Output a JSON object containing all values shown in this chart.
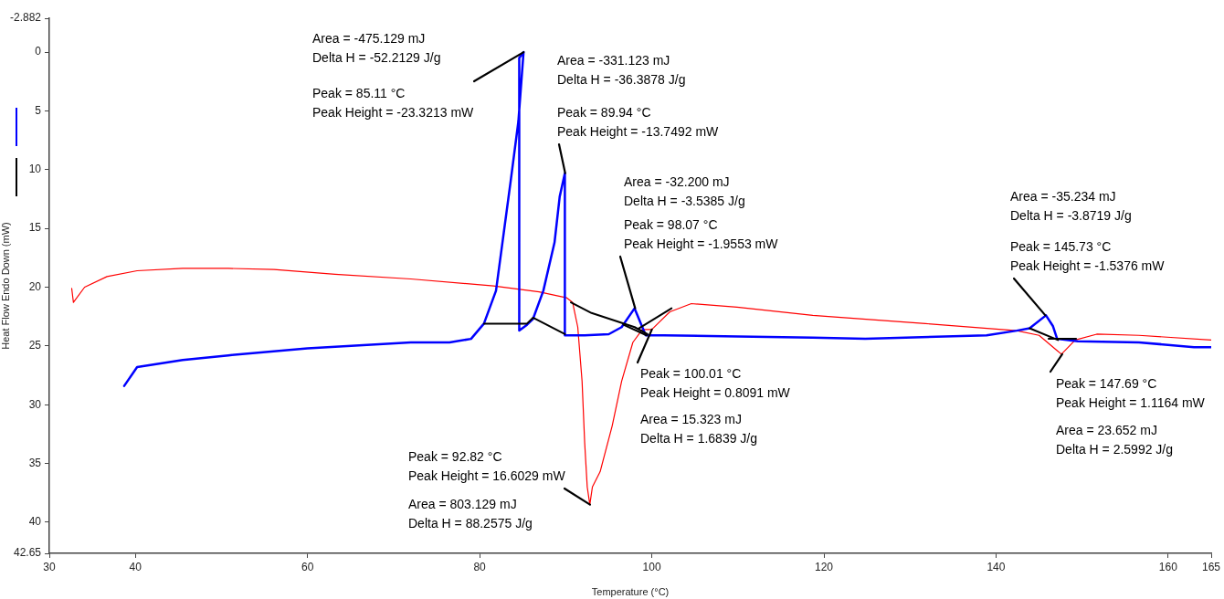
{
  "chart_data": {
    "type": "line",
    "xlabel": "Temperature (°C)",
    "ylabel": "Heat Flow Endo Down (mW)",
    "xlim": [
      30,
      165
    ],
    "xticks": [
      30,
      40,
      60,
      80,
      100,
      120,
      140,
      160,
      165
    ],
    "ylim": [
      42.65,
      -2.882
    ],
    "yticks": [
      -2.882,
      0,
      5,
      10,
      15,
      20,
      25,
      30,
      35,
      40,
      42.65
    ],
    "grid": false,
    "legend": false,
    "marker": "none",
    "line_style": "solid",
    "series": [
      {
        "color": "#000000",
        "x": [
          80.5,
          85.5,
          86.2,
          89.9
        ],
        "values": [
          23.1,
          23.1,
          22.6,
          24.0
        ]
      },
      {
        "color": "#000000",
        "x": [
          90.6,
          93,
          98.0,
          99.5
        ],
        "values": [
          21.3,
          22.2,
          23.4,
          24.0
        ]
      },
      {
        "color": "#000000",
        "x": [
          96.7,
          99.4
        ],
        "values": [
          23.2,
          24.1
        ]
      },
      {
        "color": "#000000",
        "x": [
          98.5,
          102.3
        ],
        "values": [
          23.5,
          21.8
        ]
      },
      {
        "color": "#000000",
        "x": [
          143.9,
          147.2
        ],
        "values": [
          23.5,
          24.5
        ]
      },
      {
        "color": "#000000",
        "x": [
          146.1,
          149.3
        ],
        "values": [
          24.4,
          24.4
        ]
      },
      {
        "color": "#0000ff",
        "x": [
          38.7,
          40.2,
          45.5,
          50.8,
          60,
          72,
          76.5,
          79,
          80.5,
          81.9,
          83.6,
          84.5,
          85.1,
          84.6,
          84.6,
          85.5,
          86.2,
          87.4,
          88.7,
          89.3,
          89.9,
          89.9,
          92.2,
          95,
          96.5,
          98.0,
          98.9,
          99.3,
          101.4,
          110,
          118.7,
          124.8,
          138.9,
          142.4,
          143.9,
          145.8,
          146.6,
          147.1,
          149.5,
          156.6,
          163,
          165
        ],
        "values": [
          28.4,
          26.8,
          26.2,
          25.8,
          25.2,
          24.7,
          24.7,
          24.4,
          23.1,
          20.3,
          11,
          5.9,
          0,
          0.5,
          23.7,
          23.2,
          22.7,
          20.3,
          16.2,
          12.3,
          10.3,
          24.1,
          24.1,
          24.0,
          23.4,
          21.8,
          23.4,
          24.1,
          24.1,
          24.2,
          24.3,
          24.4,
          24.1,
          23.7,
          23.5,
          22.4,
          23.3,
          24.4,
          24.6,
          24.7,
          25.1,
          25.1
        ]
      },
      {
        "color": "#ff0000",
        "x": [
          32.6,
          32.8,
          34.1,
          36.7,
          40.2,
          45.5,
          50.8,
          56.1,
          63.2,
          72,
          81.6,
          86.9,
          90.1,
          90.8,
          91.4,
          91.9,
          92.2,
          92.5,
          92.8,
          93.1,
          94,
          95.4,
          96.5,
          97.8,
          98.9,
          100,
          100.7,
          102.1,
          104.6,
          109.9,
          118.7,
          131.8,
          142.4,
          145,
          147.1,
          147.6,
          149.2,
          151.7,
          156.6,
          165
        ],
        "values": [
          20.1,
          21.3,
          20.0,
          19.1,
          18.6,
          18.4,
          18.4,
          18.5,
          18.9,
          19.3,
          19.9,
          20.4,
          20.9,
          21.3,
          23.4,
          28,
          33.2,
          37,
          38.5,
          37,
          35.7,
          31.8,
          28,
          24.7,
          23.6,
          23.6,
          23.1,
          22.1,
          21.4,
          21.7,
          22.4,
          23.1,
          23.7,
          24.1,
          25.4,
          25.7,
          24.5,
          24.0,
          24.1,
          24.5
        ]
      }
    ],
    "annotations": [
      "Area = -475.129 mJ\nDelta H = -52.2129 J/g",
      {
        "text": "Peak = 85.11 °C\nPeak Height = -23.3213 mW",
        "x": 85.11,
        "y": 0
      },
      "Area = -331.123 mJ\nDelta H = -36.3878 J/g",
      {
        "text": "Peak = 89.94 °C\nPeak Height = -13.7492 mW",
        "x": 89.94,
        "y": 10.3
      },
      "Area = -32.200 mJ\nDelta H = -3.5385 J/g",
      {
        "text": "Peak = 98.07 °C\nPeak Height = -1.9553 mW",
        "x": 98.07,
        "y": 21.8
      },
      {
        "text": "Peak = 100.01 °C\nPeak Height = 0.8091 mW",
        "x": 100.01,
        "y": 23.6
      },
      "Area = 15.323 mJ\nDelta H = 1.6839 J/g",
      {
        "text": "Peak = 92.82 °C\nPeak Height = 16.6029 mW",
        "x": 92.82,
        "y": 38.5
      },
      "Area = 803.129 mJ\nDelta H = 88.2575 J/g",
      "Area = -35.234 mJ\nDelta H = -3.8719 J/g",
      {
        "text": "Peak = 145.73 °C\nPeak Height = -1.5376 mW",
        "x": 145.73,
        "y": 22.4
      },
      {
        "text": "Peak = 147.69 °C\nPeak Height = 1.1164 mW",
        "x": 147.69,
        "y": 25.7
      },
      "Area = 23.652 mJ\nDelta H = 2.5992 J/g"
    ]
  }
}
